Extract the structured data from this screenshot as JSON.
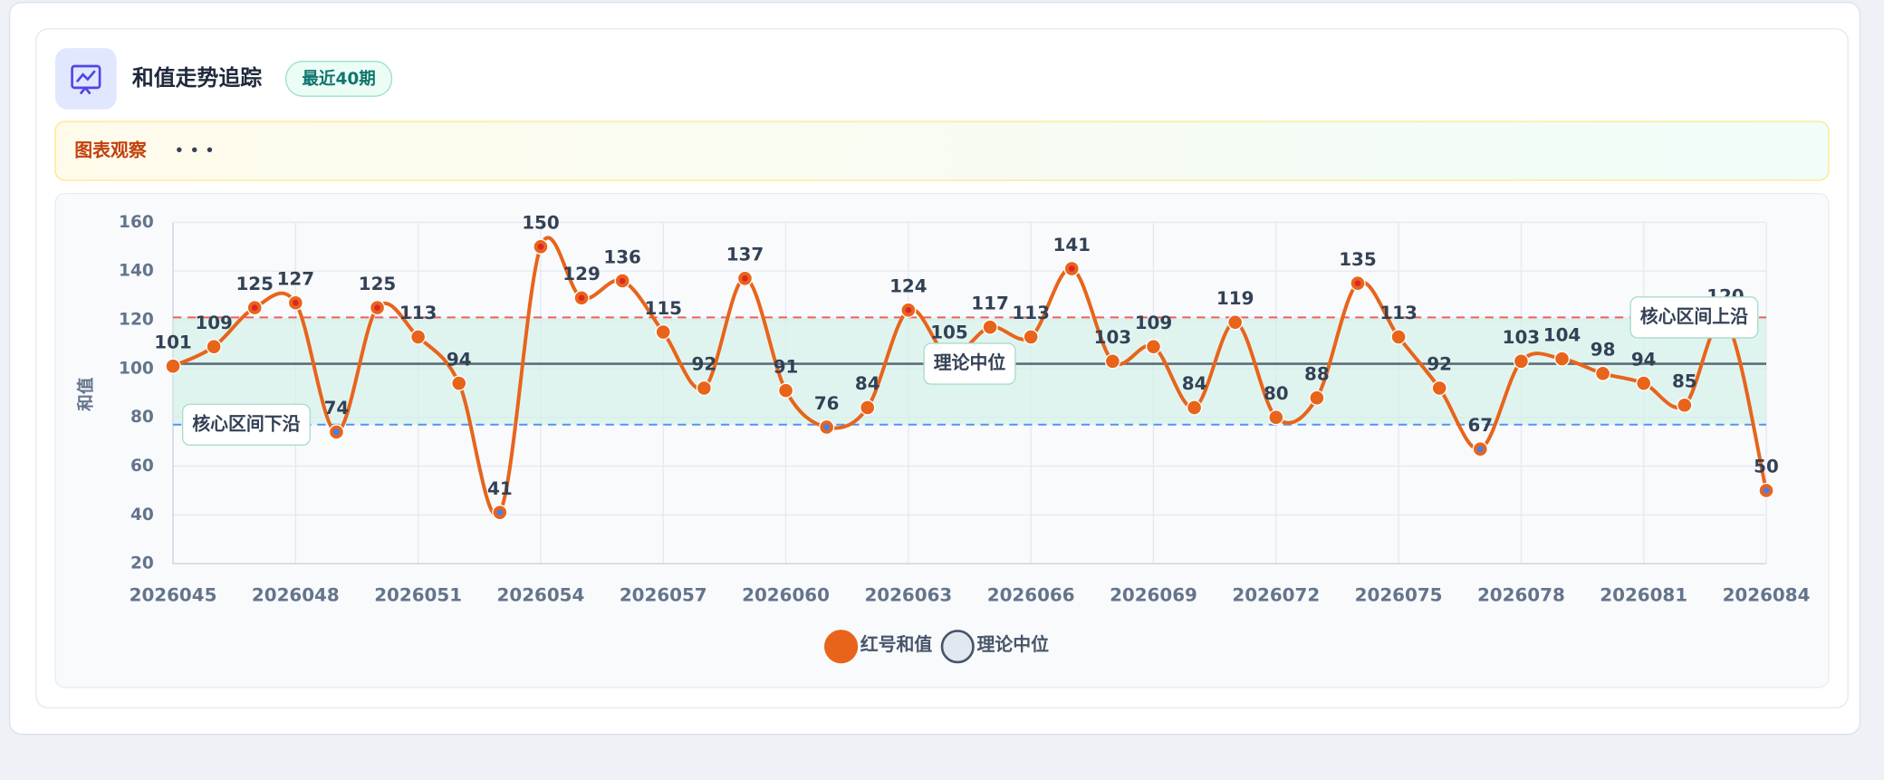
{
  "header": {
    "title": "和值走势追踪",
    "badge": "最近40期"
  },
  "observation": {
    "label": "图表观察",
    "text": "• • •"
  },
  "chart_data": {
    "type": "line",
    "y_label": "和值",
    "categories": [
      "2026045",
      null,
      null,
      "2026048",
      null,
      null,
      "2026051",
      null,
      null,
      "2026054",
      null,
      null,
      "2026057",
      null,
      null,
      "2026060",
      null,
      null,
      "2026063",
      null,
      null,
      "2026066",
      null,
      null,
      "2026069",
      null,
      null,
      "2026072",
      null,
      null,
      "2026075",
      null,
      null,
      "2026078",
      null,
      null,
      "2026081",
      null,
      null,
      "2026084"
    ],
    "series": [
      {
        "name": "红号和值",
        "color": "#e8641b",
        "values": [
          101,
          109,
          125,
          127,
          74,
          125,
          113,
          94,
          41,
          150,
          129,
          136,
          115,
          92,
          137,
          91,
          76,
          84,
          124,
          105,
          117,
          113,
          141,
          103,
          109,
          84,
          119,
          80,
          88,
          135,
          113,
          92,
          67,
          103,
          104,
          98,
          94,
          85,
          120,
          50
        ]
      }
    ],
    "reference_lines": [
      {
        "name": "理论中位",
        "value": 102,
        "color": "#475569"
      },
      {
        "name": "核心区间上沿",
        "value": 121,
        "color": "#ef4444"
      },
      {
        "name": "核心区间下沿",
        "value": 77,
        "color": "#3b82f6"
      }
    ],
    "ylim": [
      20,
      160
    ],
    "yticks": [
      20,
      40,
      60,
      80,
      100,
      120,
      140,
      160
    ],
    "grid": true,
    "legend": "bottom"
  }
}
